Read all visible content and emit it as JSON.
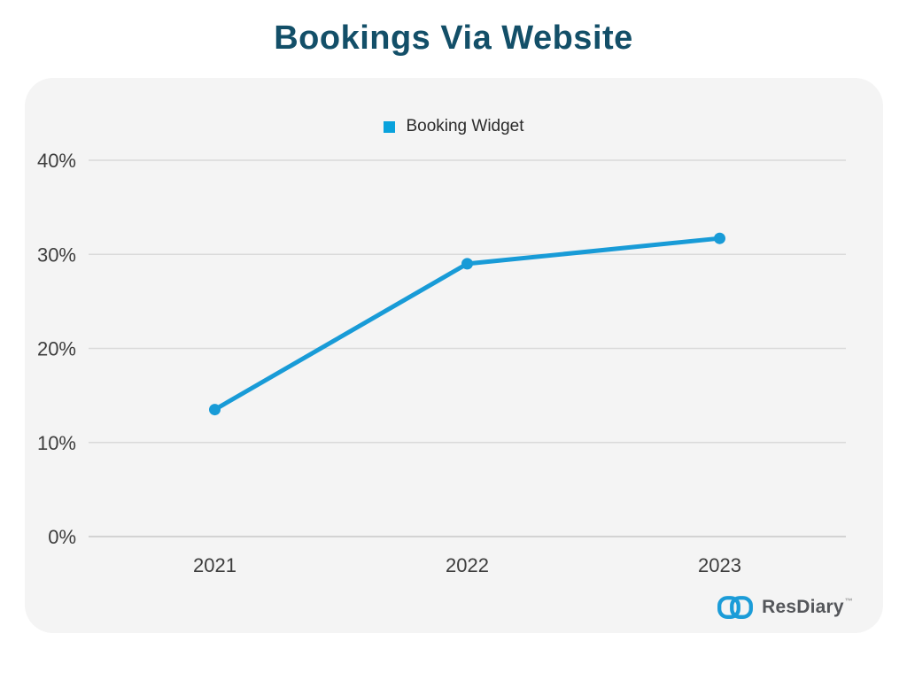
{
  "header": {
    "title": "Bookings Via Website"
  },
  "legend": {
    "label": "Booking Widget",
    "swatch_color": "#09a2dc"
  },
  "chart_data": {
    "type": "line",
    "title": "Bookings Via Website",
    "categories": [
      "2021",
      "2022",
      "2023"
    ],
    "series": [
      {
        "name": "Booking Widget",
        "values": [
          13.5,
          29,
          31.7
        ]
      }
    ],
    "xlabel": "",
    "ylabel": "",
    "ylim": [
      0,
      40
    ],
    "yticks": [
      0,
      10,
      20,
      30,
      40
    ],
    "ytick_suffix": "%",
    "grid": true,
    "legend_position": "top-center",
    "line_color": "#189bd7",
    "marker": "circle"
  },
  "colors": {
    "title": "#134f68",
    "panel_bg": "#f4f4f4",
    "gridline": "#dadada",
    "baseline": "#c8c8c8",
    "axis_text": "#3d3d3d",
    "line": "#189bd7",
    "logo_blue": "#1b9cd8",
    "logo_text": "#54565a"
  },
  "logo": {
    "name": "ResDiary",
    "trademark": "™"
  }
}
